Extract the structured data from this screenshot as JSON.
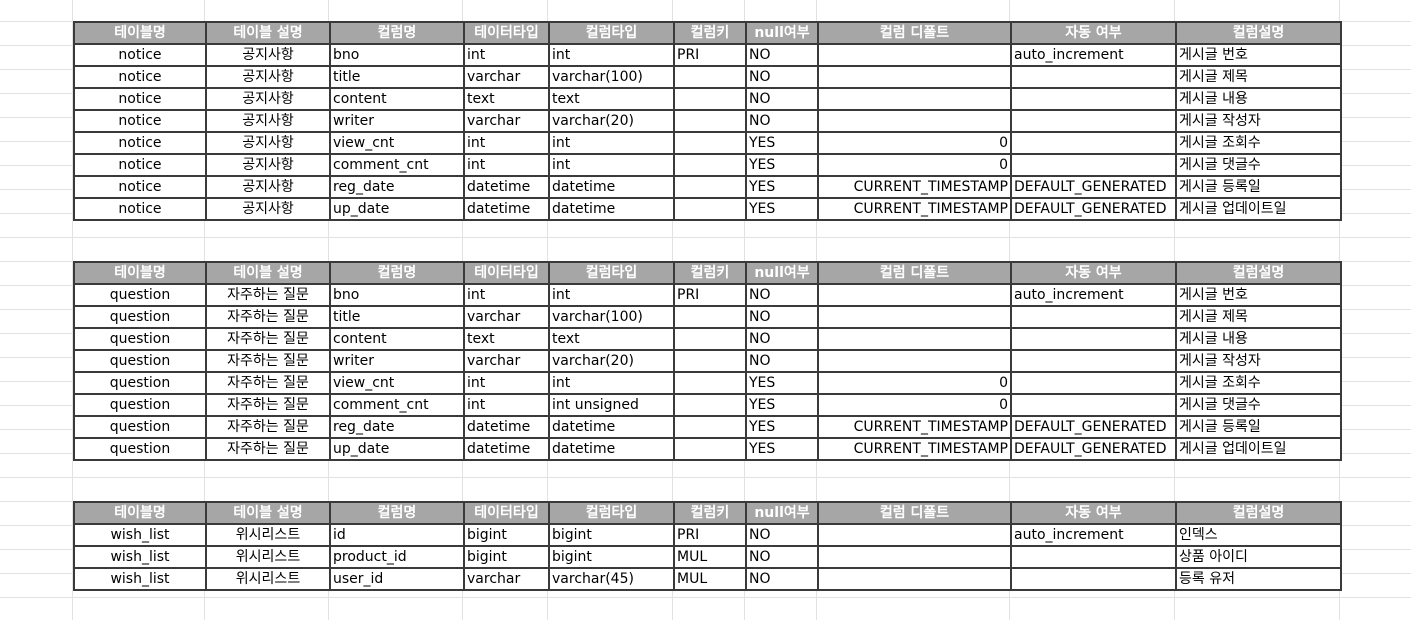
{
  "headers": [
    "테이블명",
    "테이블 설명",
    "컬럼명",
    "테이터타입",
    "컬럼타입",
    "컬럼키",
    "null여부",
    "컬럼 디폴트",
    "자동 여부",
    "컬럼설명"
  ],
  "tables": [
    {
      "rows": [
        [
          "notice",
          "공지사항",
          "bno",
          "int",
          "int",
          "PRI",
          "NO",
          "",
          "auto_increment",
          "게시글 번호"
        ],
        [
          "notice",
          "공지사항",
          "title",
          "varchar",
          "varchar(100)",
          "",
          "NO",
          "",
          "",
          "게시글 제목"
        ],
        [
          "notice",
          "공지사항",
          "content",
          "text",
          "text",
          "",
          "NO",
          "",
          "",
          "게시글 내용"
        ],
        [
          "notice",
          "공지사항",
          "writer",
          "varchar",
          "varchar(20)",
          "",
          "NO",
          "",
          "",
          "게시글 작성자"
        ],
        [
          "notice",
          "공지사항",
          "view_cnt",
          "int",
          "int",
          "",
          "YES",
          "0",
          "",
          "게시글 조회수"
        ],
        [
          "notice",
          "공지사항",
          "comment_cnt",
          "int",
          "int",
          "",
          "YES",
          "0",
          "",
          "게시글 댓글수"
        ],
        [
          "notice",
          "공지사항",
          "reg_date",
          "datetime",
          "datetime",
          "",
          "YES",
          "CURRENT_TIMESTAMP",
          "DEFAULT_GENERATED",
          "게시글 등록일"
        ],
        [
          "notice",
          "공지사항",
          "up_date",
          "datetime",
          "datetime",
          "",
          "YES",
          "CURRENT_TIMESTAMP",
          "DEFAULT_GENERATED",
          "게시글 업데이트일"
        ]
      ]
    },
    {
      "rows": [
        [
          "question",
          "자주하는 질문",
          "bno",
          "int",
          "int",
          "PRI",
          "NO",
          "",
          "auto_increment",
          "게시글 번호"
        ],
        [
          "question",
          "자주하는 질문",
          "title",
          "varchar",
          "varchar(100)",
          "",
          "NO",
          "",
          "",
          "게시글 제목"
        ],
        [
          "question",
          "자주하는 질문",
          "content",
          "text",
          "text",
          "",
          "NO",
          "",
          "",
          "게시글 내용"
        ],
        [
          "question",
          "자주하는 질문",
          "writer",
          "varchar",
          "varchar(20)",
          "",
          "NO",
          "",
          "",
          "게시글 작성자"
        ],
        [
          "question",
          "자주하는 질문",
          "view_cnt",
          "int",
          "int",
          "",
          "YES",
          "0",
          "",
          "게시글 조회수"
        ],
        [
          "question",
          "자주하는 질문",
          "comment_cnt",
          "int",
          "int unsigned",
          "",
          "YES",
          "0",
          "",
          "게시글 댓글수"
        ],
        [
          "question",
          "자주하는 질문",
          "reg_date",
          "datetime",
          "datetime",
          "",
          "YES",
          "CURRENT_TIMESTAMP",
          "DEFAULT_GENERATED",
          "게시글 등록일"
        ],
        [
          "question",
          "자주하는 질문",
          "up_date",
          "datetime",
          "datetime",
          "",
          "YES",
          "CURRENT_TIMESTAMP",
          "DEFAULT_GENERATED",
          "게시글 업데이트일"
        ]
      ]
    },
    {
      "rows": [
        [
          "wish_list",
          "위시리스트",
          "id",
          "bigint",
          "bigint",
          "PRI",
          "NO",
          "",
          "auto_increment",
          "인덱스"
        ],
        [
          "wish_list",
          "위시리스트",
          "product_id",
          "bigint",
          "bigint",
          "MUL",
          "NO",
          "",
          "",
          "상품 아이디"
        ],
        [
          "wish_list",
          "위시리스트",
          "user_id",
          "varchar",
          "varchar(45)",
          "MUL",
          "NO",
          "",
          "",
          "등록 유저"
        ]
      ]
    }
  ]
}
